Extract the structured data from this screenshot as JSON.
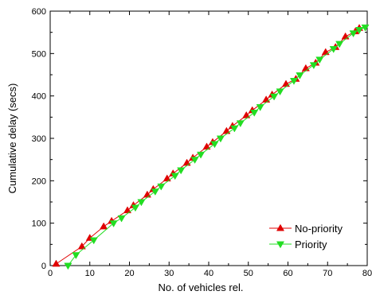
{
  "chart_data": {
    "type": "line",
    "xlabel": "No. of vehicles rel.",
    "ylabel": "Cumulative delay (secs)",
    "xlim": [
      0,
      80
    ],
    "ylim": [
      0,
      600
    ],
    "x_ticks": [
      0,
      10,
      20,
      30,
      40,
      50,
      60,
      70,
      80
    ],
    "y_ticks": [
      0,
      100,
      200,
      300,
      400,
      500,
      600
    ],
    "grid": false,
    "legend_position": "bottom-right",
    "series": [
      {
        "name": "No-priority",
        "color": "#e00000",
        "marker": "triangle-up",
        "x": [
          1.5,
          8,
          10,
          13.5,
          15.5,
          19.5,
          21,
          24.5,
          26,
          29.5,
          31,
          34.5,
          36,
          39.5,
          41,
          44.5,
          46,
          49.5,
          51,
          54.5,
          56,
          59.5,
          62,
          64.5,
          67,
          69.5,
          72,
          74.5,
          77,
          78
        ],
        "y": [
          4,
          45,
          65,
          92,
          105,
          130,
          142,
          167,
          180,
          205,
          217,
          242,
          254,
          280,
          291,
          317,
          329,
          354,
          366,
          391,
          403,
          428,
          440,
          465,
          478,
          503,
          515,
          540,
          552,
          560
        ]
      },
      {
        "name": "Priority",
        "color": "#22dd22",
        "marker": "triangle-down",
        "x": [
          4.5,
          6.5,
          11,
          16,
          18,
          21.5,
          23,
          26.5,
          28,
          31.5,
          33,
          36.5,
          38,
          41.5,
          43,
          46.5,
          48,
          51.5,
          53,
          56.5,
          58,
          61.5,
          63,
          66.5,
          68,
          71.5,
          73,
          76.5,
          78,
          79.5
        ],
        "y": [
          0,
          25,
          60,
          100,
          112,
          137,
          150,
          175,
          187,
          212,
          225,
          250,
          262,
          287,
          300,
          324,
          336,
          361,
          374,
          399,
          411,
          436,
          449,
          473,
          486,
          511,
          523,
          548,
          556,
          562
        ]
      }
    ]
  }
}
